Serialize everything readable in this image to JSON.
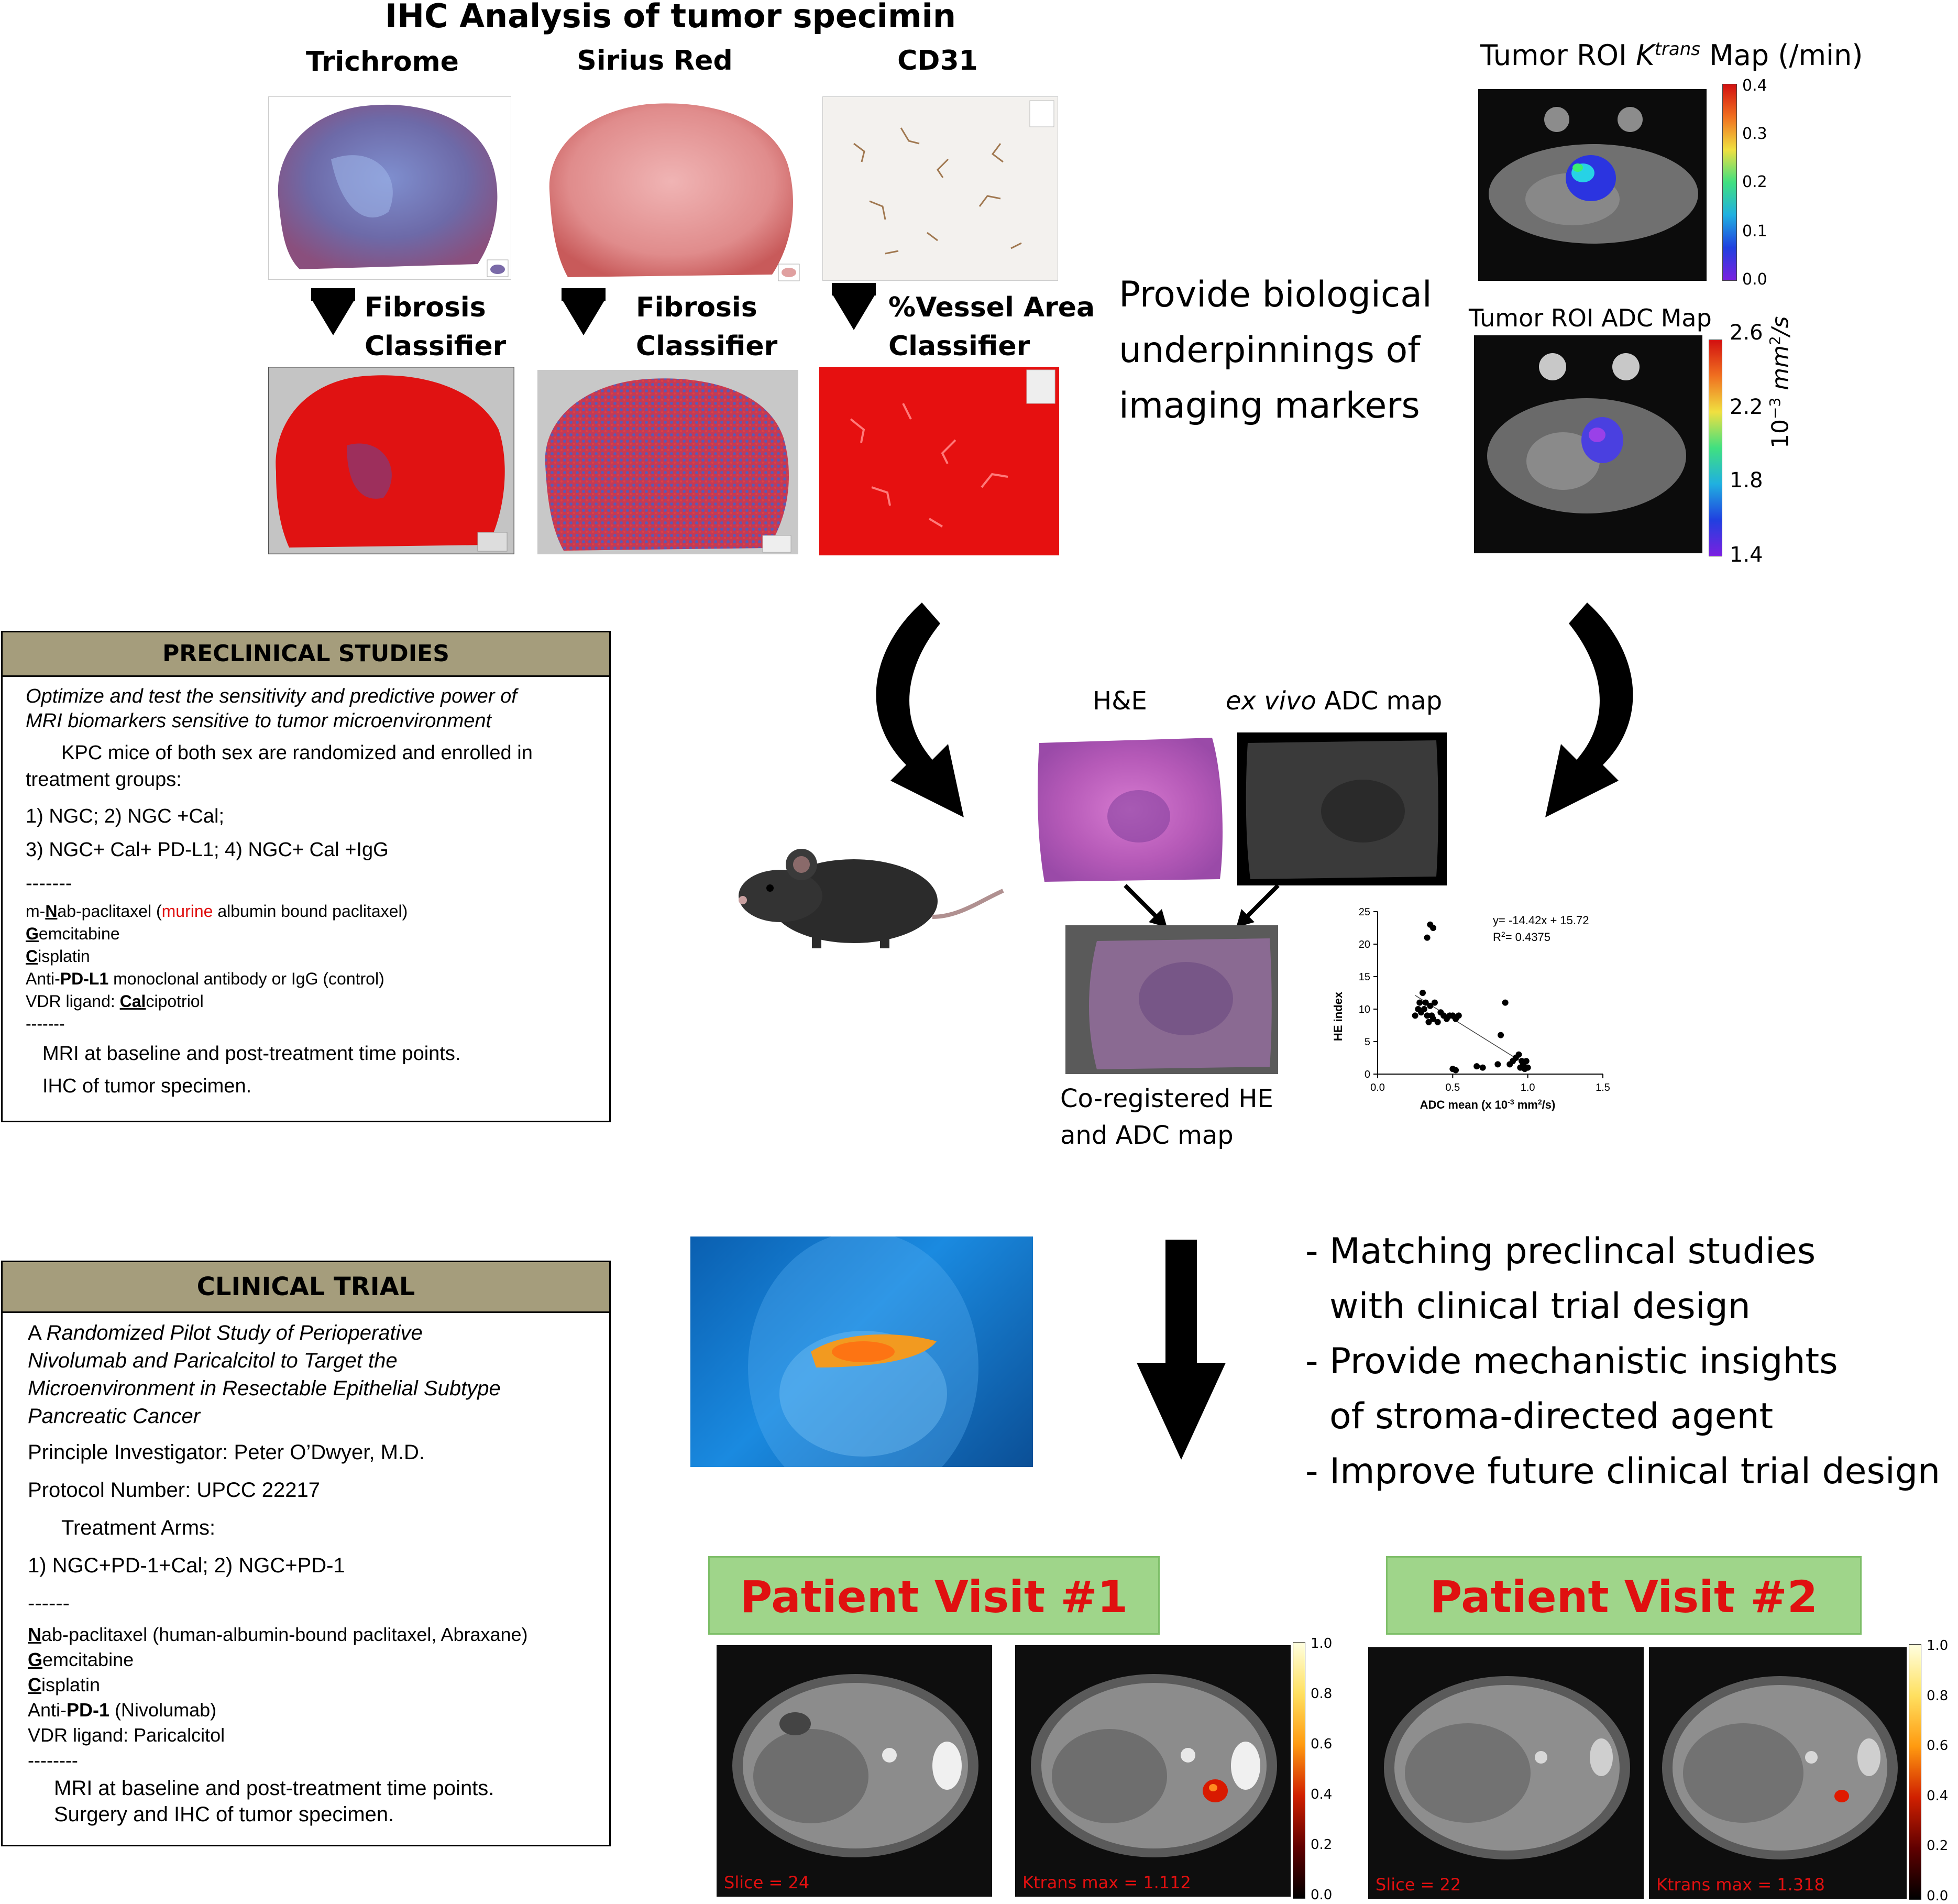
{
  "ihc": {
    "title": "IHC Analysis of tumor specimin",
    "stains": [
      "Trichrome",
      "Sirius Red",
      "CD31"
    ],
    "classifiers": [
      {
        "line1": "Fibrosis",
        "line2": "Classifier"
      },
      {
        "line1": "Fibrosis",
        "line2": "Classifier"
      },
      {
        "line1": "%Vessel Area",
        "line2": "Classifier"
      }
    ]
  },
  "ktrans_map": {
    "title_prefix": "Tumor ROI ",
    "title_k": "K",
    "title_sup": "trans",
    "title_suffix": " Map (/min)",
    "ticks": [
      "0.4",
      "0.3",
      "0.2",
      "0.1",
      "0.0"
    ]
  },
  "adc_map": {
    "title": "Tumor ROI ADC Map",
    "ticks": [
      "2.6",
      "2.2",
      "1.8",
      "1.4"
    ],
    "unit_base": "10",
    "unit_exp": "−3",
    "unit_mm": "mm",
    "unit_sq": "2",
    "unit_per": "/s"
  },
  "purpose": {
    "line1": "Provide biological",
    "line2": "underpinnings of",
    "line3": "imaging markers"
  },
  "preclinical": {
    "header": "PRECLINICAL STUDIES",
    "aim_line1": "Optimize and test the sensitivity and predictive power of",
    "aim_line2": "MRI biomarkers sensitive to tumor microenvironment",
    "mice_line1": "KPC mice of both sex are randomized and enrolled in",
    "mice_line2": "treatment groups:",
    "groups_line1": "1)   NGC; 2) NGC +Cal;",
    "groups_line2": "3) NGC+ Cal+ PD-L1; 4) NGC+ Cal +IgG",
    "sep": "-------",
    "drug1_a": "m-",
    "drug1_b": "N",
    "drug1_c": "ab-paclitaxel (",
    "drug1_murine": "murine",
    "drug1_d": " albumin bound paclitaxel)",
    "drug2_a": "G",
    "drug2_b": "emcitabine",
    "drug3_a": "C",
    "drug3_b": "isplatin",
    "drug4_a": "Anti-",
    "drug4_b": "PD-L1",
    "drug4_c": " monoclonal antibody or IgG (control)",
    "drug5_a": "VDR ligand:  ",
    "drug5_b": "Cal",
    "drug5_c": "cipotriol",
    "sep2": "-------",
    "mri": "MRI at baseline and post-treatment time points.",
    "ihc": "IHC of tumor specimen."
  },
  "exvivo": {
    "he_label": "H&E",
    "adc_italic": "ex vivo",
    "adc_rest": " ADC map",
    "coreg_line1": "Co-registered HE",
    "coreg_line2": "and ADC map"
  },
  "chart_data": {
    "type": "scatter",
    "xlabel_prefix": "ADC mean (x 10",
    "xlabel_exp": "-3",
    "xlabel_mid": " mm",
    "xlabel_sq": "2",
    "xlabel_suffix": "/s)",
    "ylabel": "HE index",
    "xlim": [
      0,
      1.5
    ],
    "ylim": [
      0,
      25
    ],
    "x_ticks": [
      "0.0",
      "0.5",
      "1.0",
      "1.5"
    ],
    "y_ticks": [
      "0",
      "5",
      "10",
      "15",
      "20",
      "25"
    ],
    "equation": "y= -14.42x + 15.72",
    "r2_prefix": "R",
    "r2_sup": "2",
    "r2_value": "= 0.4375",
    "fit": {
      "slope": -14.42,
      "intercept": 15.72,
      "x_range": [
        0.25,
        1.0
      ]
    },
    "points": [
      [
        0.33,
        21
      ],
      [
        0.35,
        23
      ],
      [
        0.37,
        22.5
      ],
      [
        0.25,
        9
      ],
      [
        0.27,
        10
      ],
      [
        0.28,
        11
      ],
      [
        0.29,
        9.5
      ],
      [
        0.3,
        12.5
      ],
      [
        0.31,
        10
      ],
      [
        0.32,
        11
      ],
      [
        0.33,
        9
      ],
      [
        0.34,
        8
      ],
      [
        0.35,
        10.5
      ],
      [
        0.36,
        9
      ],
      [
        0.37,
        8.5
      ],
      [
        0.38,
        11
      ],
      [
        0.4,
        8
      ],
      [
        0.42,
        9.5
      ],
      [
        0.44,
        9
      ],
      [
        0.46,
        8.5
      ],
      [
        0.48,
        9
      ],
      [
        0.5,
        9
      ],
      [
        0.52,
        8.5
      ],
      [
        0.54,
        9
      ],
      [
        0.5,
        0.8
      ],
      [
        0.52,
        0.6
      ],
      [
        0.66,
        1.2
      ],
      [
        0.7,
        1.0
      ],
      [
        0.8,
        1.5
      ],
      [
        0.85,
        11
      ],
      [
        0.88,
        1.5
      ],
      [
        0.9,
        2
      ],
      [
        0.92,
        2.5
      ],
      [
        0.94,
        3
      ],
      [
        0.95,
        1
      ],
      [
        0.96,
        2
      ],
      [
        0.97,
        1.5
      ],
      [
        0.98,
        0.8
      ],
      [
        0.99,
        2
      ],
      [
        1.0,
        1
      ],
      [
        0.82,
        6
      ]
    ]
  },
  "insights": {
    "l1": "- Matching preclincal studies",
    "l2": "with clinical trial design",
    "l3": "- Provide mechanistic insights",
    "l4": "of stroma-directed agent",
    "l5": "- Improve future clinical trial design"
  },
  "clinical": {
    "header": "CLINICAL TRIAL",
    "title_a": "A ",
    "title_l1": "Randomized Pilot Study of Perioperative",
    "title_l2": "Nivolumab and Paricalcitol to Target the",
    "title_l3": "Microenvironment in Resectable Epithelial Subtype",
    "title_l4": "Pancreatic Cancer",
    "pi": "Principle Investigator: Peter O’Dwyer, M.D.",
    "protocol": "Protocol Number: UPCC 22217",
    "arms_label": "Treatment Arms:",
    "arms": "1) NGC+PD-1+Cal; 2) NGC+PD-1",
    "sep": "------",
    "drug1_a": "N",
    "drug1_b": "ab-paclitaxel (human-albumin-bound paclitaxel, Abraxane)",
    "drug2_a": "G",
    "drug2_b": "emcitabine",
    "drug3_a": "C",
    "drug3_b": "isplatin",
    "drug4_a": "Anti-",
    "drug4_b": "PD-1",
    "drug4_c": " (Nivolumab)",
    "drug5": "VDR ligand: Paricalcitol",
    "sep2": "--------",
    "mri": "MRI at baseline and post-treatment time points.",
    "surgery": "Surgery and IHC of tumor specimen."
  },
  "visits": [
    {
      "title": "Patient Visit #1",
      "slice": "Slice = 24",
      "ktrans": "Ktrans max = 1.112"
    },
    {
      "title": "Patient Visit #2",
      "slice": "Slice = 22",
      "ktrans": "Ktrans max = 1.318"
    }
  ],
  "visit_colorbar_ticks": [
    "1.0",
    "0.8",
    "0.6",
    "0.4",
    "0.2",
    "0.0"
  ]
}
